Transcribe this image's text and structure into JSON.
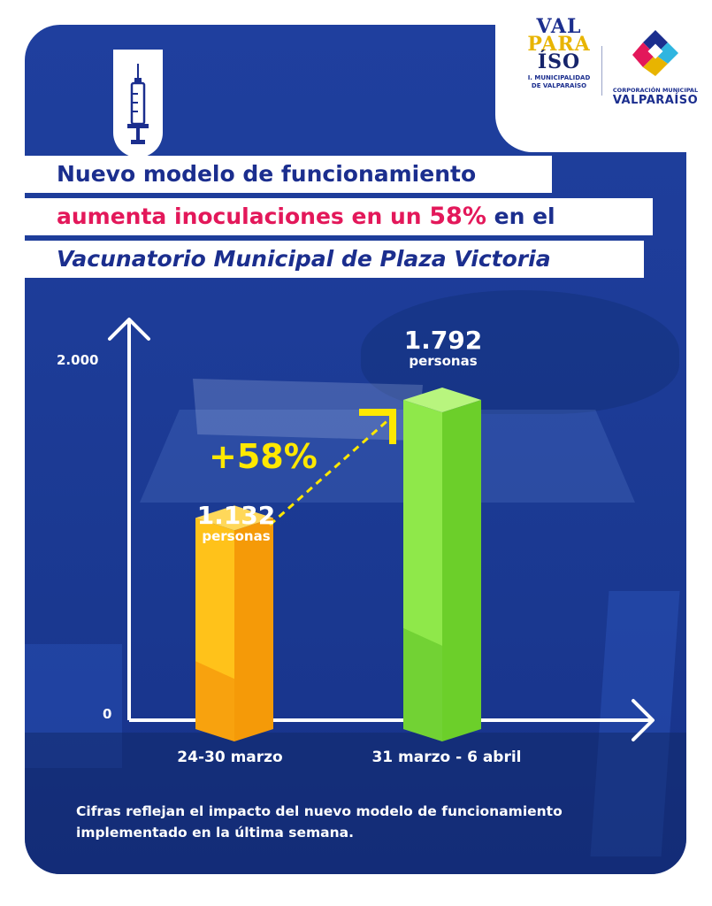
{
  "header": {
    "logo_valparaiso": {
      "mark_lines": [
        "VAL",
        "PARA",
        "ÍSO"
      ],
      "caption_line1": "I. MUNICIPALIDAD",
      "caption_line2": "DE VALPARAÍSO"
    },
    "logo_corporacion": {
      "caption_line1": "CORPORACIÓN MUNICIPAL",
      "caption_line2": "VALPARAÍSO",
      "colors": [
        "#e3185a",
        "#e8b400",
        "#2fb5e0",
        "#1b2e8e"
      ]
    },
    "syringe_icon": "syringe-icon"
  },
  "headline": {
    "line1": "Nuevo modelo de funcionamiento",
    "line2_part1": "aumenta inoculaciones en un ",
    "line2_pct": "58%",
    "line2_part2": " en el",
    "line3": "Vacunatorio Municipal de Plaza Victoria"
  },
  "chart_data": {
    "type": "bar",
    "categories": [
      "24-30 marzo",
      "31 marzo - 6 abril"
    ],
    "values": [
      1132,
      1792
    ],
    "value_labels": [
      "1.132",
      "1.792"
    ],
    "value_unit": "personas",
    "ylim": [
      0,
      2000
    ],
    "y_ticks": [
      {
        "value": 0,
        "label": "0"
      },
      {
        "value": 2000,
        "label": "2.000"
      }
    ],
    "bar_colors": [
      {
        "front": "#ffc21a",
        "side": "#f59a08",
        "top": "#ffd85a",
        "dark": "#ef7d00"
      },
      {
        "front": "#8fe84a",
        "side": "#6ccf2a",
        "top": "#b8f57e",
        "dark": "#4fb81a"
      }
    ],
    "annotation": "+58%",
    "annotation_color": "#ffe800",
    "grid": false,
    "legend": "none"
  },
  "footnote": {
    "line1": "Cifras reflejan el impacto del nuevo modelo de funcionamiento",
    "line2": "implementado en la última semana."
  }
}
